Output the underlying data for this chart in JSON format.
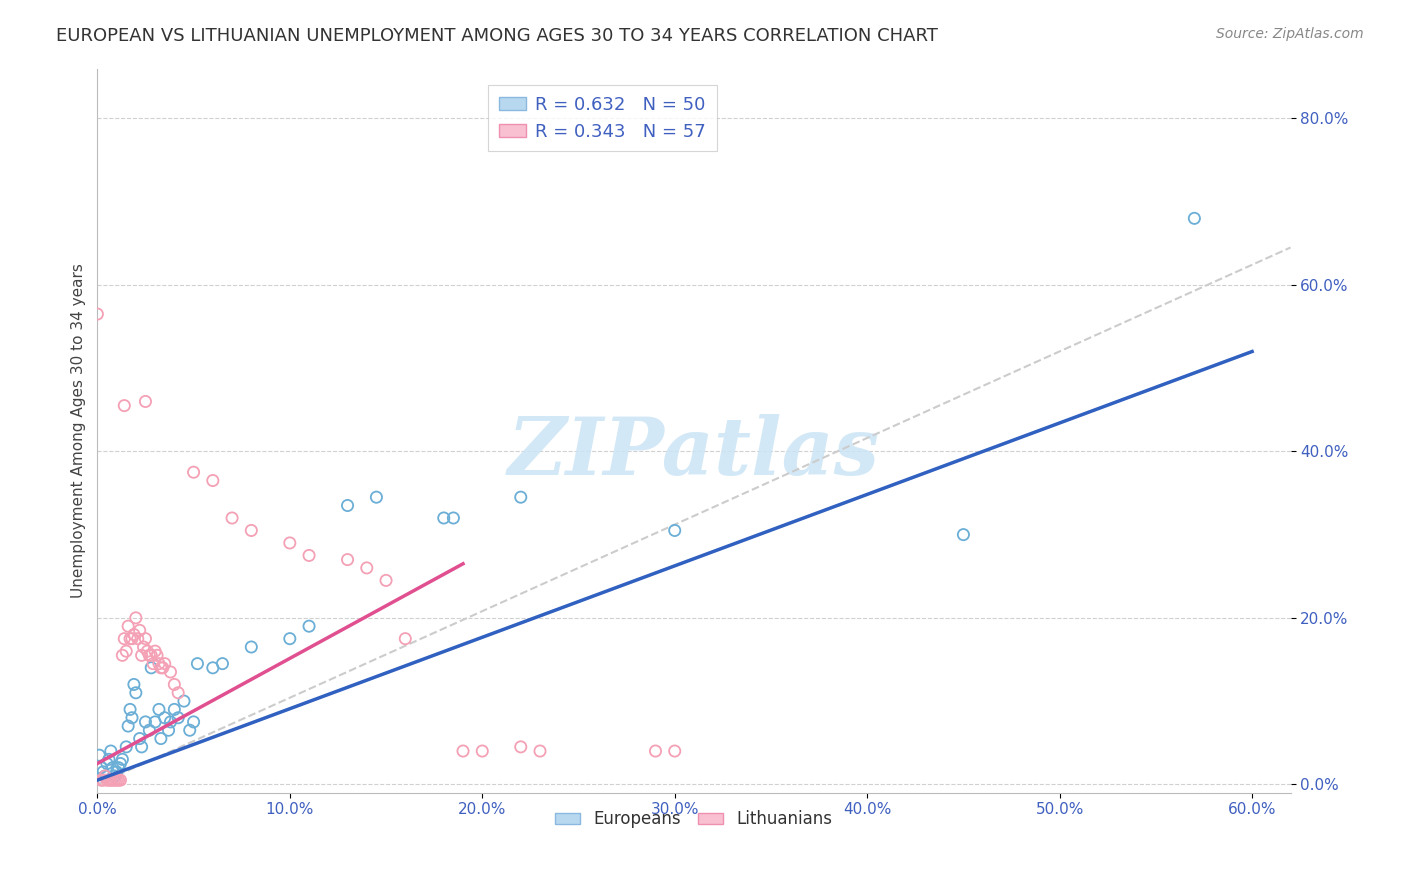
{
  "title": "EUROPEAN VS LITHUANIAN UNEMPLOYMENT AMONG AGES 30 TO 34 YEARS CORRELATION CHART",
  "source": "Source: ZipAtlas.com",
  "ylabel": "Unemployment Among Ages 30 to 34 years",
  "xlabel": "",
  "xlim": [
    0.0,
    0.62
  ],
  "ylim": [
    -0.01,
    0.86
  ],
  "xticks": [
    0.0,
    0.1,
    0.2,
    0.3,
    0.4,
    0.5,
    0.6
  ],
  "yticks": [
    0.0,
    0.2,
    0.4,
    0.6,
    0.8
  ],
  "background_color": "#ffffff",
  "watermark_text": "ZIPatlas",
  "blue_scatter_color": "#6baed6",
  "pink_scatter_color": "#f4a0b5",
  "blue_line_color": "#3060c0",
  "pink_line_color": "#e05090",
  "dashed_line_color": "#cccccc",
  "blue_points": [
    [
      0.001,
      0.035
    ],
    [
      0.002,
      0.02
    ],
    [
      0.003,
      0.015
    ],
    [
      0.004,
      0.01
    ],
    [
      0.005,
      0.025
    ],
    [
      0.006,
      0.03
    ],
    [
      0.007,
      0.04
    ],
    [
      0.008,
      0.02
    ],
    [
      0.009,
      0.01
    ],
    [
      0.01,
      0.015
    ],
    [
      0.011,
      0.02
    ],
    [
      0.012,
      0.025
    ],
    [
      0.013,
      0.03
    ],
    [
      0.015,
      0.045
    ],
    [
      0.016,
      0.07
    ],
    [
      0.017,
      0.09
    ],
    [
      0.018,
      0.08
    ],
    [
      0.019,
      0.12
    ],
    [
      0.02,
      0.11
    ],
    [
      0.022,
      0.055
    ],
    [
      0.023,
      0.045
    ],
    [
      0.025,
      0.075
    ],
    [
      0.027,
      0.065
    ],
    [
      0.028,
      0.14
    ],
    [
      0.03,
      0.075
    ],
    [
      0.032,
      0.09
    ],
    [
      0.033,
      0.055
    ],
    [
      0.035,
      0.08
    ],
    [
      0.037,
      0.065
    ],
    [
      0.038,
      0.075
    ],
    [
      0.04,
      0.09
    ],
    [
      0.042,
      0.08
    ],
    [
      0.045,
      0.1
    ],
    [
      0.048,
      0.065
    ],
    [
      0.05,
      0.075
    ],
    [
      0.052,
      0.145
    ],
    [
      0.06,
      0.14
    ],
    [
      0.065,
      0.145
    ],
    [
      0.08,
      0.165
    ],
    [
      0.1,
      0.175
    ],
    [
      0.11,
      0.19
    ],
    [
      0.13,
      0.335
    ],
    [
      0.145,
      0.345
    ],
    [
      0.18,
      0.32
    ],
    [
      0.185,
      0.32
    ],
    [
      0.22,
      0.345
    ],
    [
      0.3,
      0.305
    ],
    [
      0.45,
      0.3
    ],
    [
      0.57,
      0.68
    ]
  ],
  "pink_points": [
    [
      0.0,
      0.565
    ],
    [
      0.002,
      0.005
    ],
    [
      0.003,
      0.005
    ],
    [
      0.004,
      0.01
    ],
    [
      0.005,
      0.005
    ],
    [
      0.006,
      0.005
    ],
    [
      0.007,
      0.005
    ],
    [
      0.008,
      0.005
    ],
    [
      0.009,
      0.005
    ],
    [
      0.01,
      0.005
    ],
    [
      0.011,
      0.005
    ],
    [
      0.012,
      0.005
    ],
    [
      0.013,
      0.155
    ],
    [
      0.014,
      0.175
    ],
    [
      0.015,
      0.16
    ],
    [
      0.016,
      0.19
    ],
    [
      0.017,
      0.175
    ],
    [
      0.018,
      0.175
    ],
    [
      0.019,
      0.18
    ],
    [
      0.02,
      0.2
    ],
    [
      0.021,
      0.175
    ],
    [
      0.022,
      0.185
    ],
    [
      0.023,
      0.155
    ],
    [
      0.024,
      0.165
    ],
    [
      0.025,
      0.175
    ],
    [
      0.026,
      0.16
    ],
    [
      0.027,
      0.155
    ],
    [
      0.028,
      0.155
    ],
    [
      0.029,
      0.145
    ],
    [
      0.03,
      0.16
    ],
    [
      0.031,
      0.155
    ],
    [
      0.032,
      0.145
    ],
    [
      0.033,
      0.14
    ],
    [
      0.034,
      0.14
    ],
    [
      0.035,
      0.145
    ],
    [
      0.038,
      0.135
    ],
    [
      0.04,
      0.12
    ],
    [
      0.042,
      0.11
    ],
    [
      0.014,
      0.455
    ],
    [
      0.025,
      0.46
    ],
    [
      0.05,
      0.375
    ],
    [
      0.06,
      0.365
    ],
    [
      0.07,
      0.32
    ],
    [
      0.08,
      0.305
    ],
    [
      0.1,
      0.29
    ],
    [
      0.11,
      0.275
    ],
    [
      0.13,
      0.27
    ],
    [
      0.14,
      0.26
    ],
    [
      0.15,
      0.245
    ],
    [
      0.16,
      0.175
    ],
    [
      0.19,
      0.04
    ],
    [
      0.2,
      0.04
    ],
    [
      0.22,
      0.045
    ],
    [
      0.23,
      0.04
    ],
    [
      0.29,
      0.04
    ],
    [
      0.3,
      0.04
    ]
  ],
  "blue_line_x": [
    0.0,
    0.6
  ],
  "blue_line_y": [
    0.005,
    0.52
  ],
  "pink_line_x": [
    0.0,
    0.19
  ],
  "pink_line_y": [
    0.025,
    0.265
  ],
  "dashed_line_x": [
    0.0,
    0.62
  ],
  "dashed_line_y": [
    0.0,
    0.645
  ],
  "title_fontsize": 13,
  "source_fontsize": 10,
  "axis_label_fontsize": 11,
  "tick_fontsize": 11,
  "scatter_size": 65,
  "scatter_alpha": 0.7,
  "scatter_linewidth": 1.3
}
